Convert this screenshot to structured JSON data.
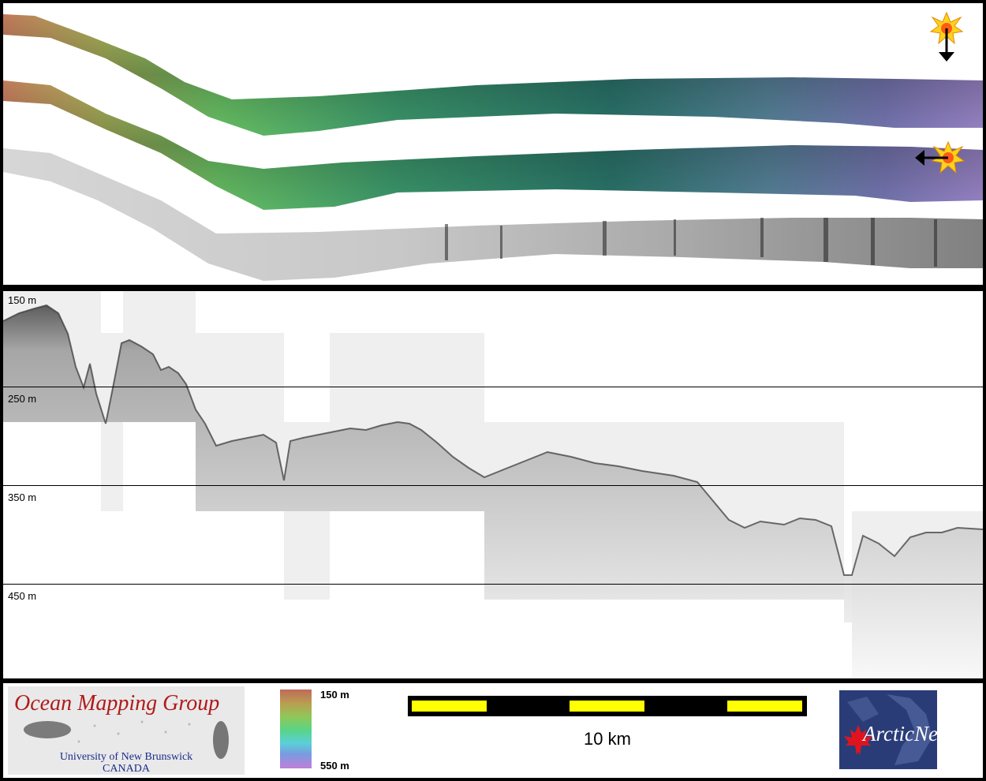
{
  "profile": {
    "depth_labels": [
      "150 m",
      "250 m",
      "350 m",
      "450 m"
    ]
  },
  "legend": {
    "colorbar_top": "150 m",
    "colorbar_bottom": "550 m",
    "colorbar_colors": [
      "#c06a5a",
      "#b8a050",
      "#8ec85a",
      "#58d488",
      "#5ad0d8",
      "#7a9ae0",
      "#c080d8"
    ],
    "scale_label": "10 km",
    "scale_color": "#ffff00"
  },
  "logos": {
    "omg_title": "Ocean Mapping Group",
    "omg_university": "University of New Brunswick",
    "omg_country": "CANADA",
    "arcticnet": "ArcticNet"
  },
  "icons": [
    "sun-direction-icon",
    "down-arrow-icon",
    "left-arrow-icon",
    "maple-leaf-icon"
  ]
}
